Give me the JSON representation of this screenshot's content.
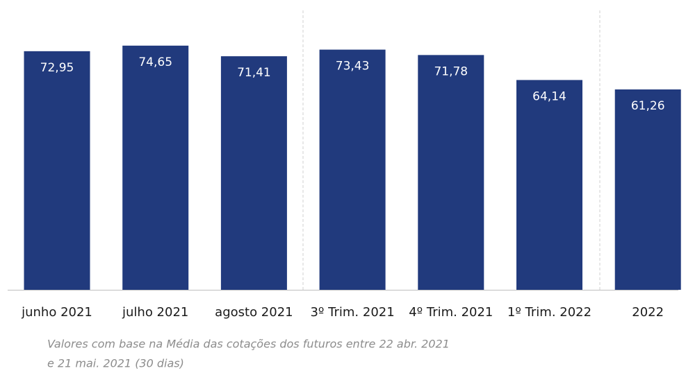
{
  "chart_data": {
    "type": "bar",
    "categories": [
      "junho 2021",
      "julho 2021",
      "agosto 2021",
      "3º Trim. 2021",
      "4º Trim. 2021",
      "1º Trim. 2022",
      "2022"
    ],
    "values": [
      72.95,
      74.65,
      71.41,
      73.43,
      71.78,
      64.14,
      61.26
    ],
    "value_labels": [
      "72,95",
      "74,65",
      "71,41",
      "73,43",
      "71,78",
      "64,14",
      "61,26"
    ],
    "color": "#213a7d",
    "ylim": [
      0,
      85
    ],
    "note": [
      "Valores com base na Média das cotações dos futuros entre 22 abr. 2021",
      "e 21 mai. 2021 (30 dias)"
    ]
  }
}
